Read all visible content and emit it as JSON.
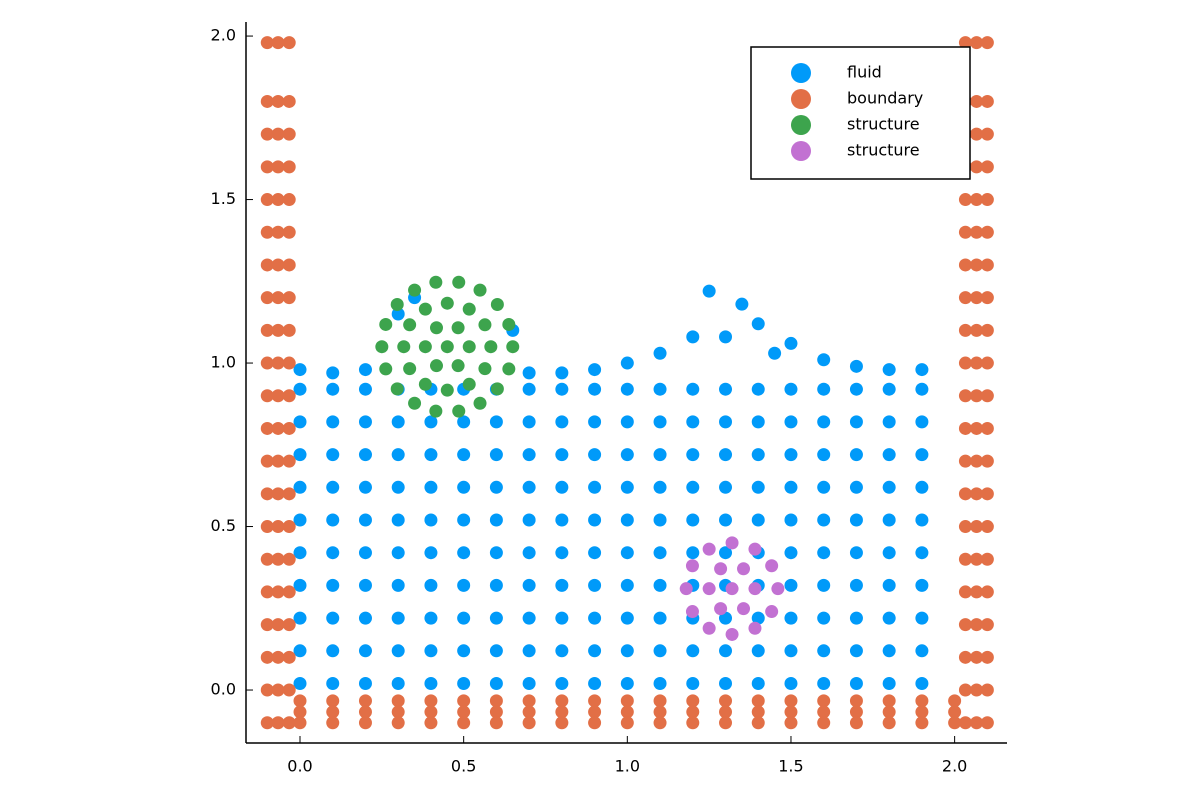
{
  "chart_data": {
    "type": "scatter",
    "xlim": [
      -0.165,
      2.16
    ],
    "ylim": [
      -0.162,
      2.043
    ],
    "xticks": [
      {
        "value": 0,
        "label": "0.0"
      },
      0.5,
      {
        "value": 1,
        "label": "1.0"
      },
      1.5,
      {
        "value": 2,
        "label": "2.0"
      }
    ],
    "yticks": [
      {
        "value": 0,
        "label": "0.0"
      },
      0.5,
      {
        "value": 1,
        "label": "1.0"
      },
      1.5,
      {
        "value": 2,
        "label": "2.0"
      }
    ],
    "grid": false,
    "legend": "top-right",
    "series": [
      {
        "name": "fluid",
        "color": "#009af9",
        "x": [
          0,
          0.1,
          0.2,
          0.3,
          0.4,
          0.5,
          0.6,
          0.7,
          0.8,
          0.9,
          1.0,
          1.1,
          1.2,
          1.3,
          1.4,
          1.5,
          1.6,
          1.7,
          1.8,
          1.9,
          0,
          0.1,
          0.2,
          0.3,
          0.4,
          0.5,
          0.6,
          0.7,
          0.8,
          0.9,
          1.0,
          1.1,
          1.2,
          1.3,
          1.4,
          1.5,
          1.6,
          1.7,
          1.8,
          1.9,
          0,
          0.1,
          0.2,
          0.3,
          0.4,
          0.5,
          0.6,
          0.7,
          0.8,
          0.9,
          1.0,
          1.1,
          1.2,
          1.3,
          1.4,
          1.5,
          1.6,
          1.7,
          1.8,
          1.9,
          0,
          0.1,
          0.2,
          0.3,
          0.4,
          0.5,
          0.6,
          0.7,
          0.8,
          0.9,
          1.0,
          1.1,
          1.2,
          1.3,
          1.4,
          1.5,
          1.6,
          1.7,
          1.8,
          1.9,
          0,
          0.1,
          0.2,
          0.3,
          0.4,
          0.5,
          0.6,
          0.7,
          0.8,
          0.9,
          1.0,
          1.1,
          1.2,
          1.3,
          1.4,
          1.5,
          1.6,
          1.7,
          1.8,
          1.9,
          0,
          0.1,
          0.2,
          0.3,
          0.4,
          0.5,
          0.6,
          0.7,
          0.8,
          0.9,
          1.0,
          1.1,
          1.2,
          1.3,
          1.4,
          1.5,
          1.6,
          1.7,
          1.8,
          1.9,
          0,
          0.1,
          0.2,
          0.3,
          0.4,
          0.5,
          0.6,
          0.7,
          0.8,
          0.9,
          1.0,
          1.1,
          1.2,
          1.3,
          1.4,
          1.5,
          1.6,
          1.7,
          1.8,
          1.9,
          0,
          0.1,
          0.2,
          0.3,
          0.4,
          0.5,
          0.6,
          0.7,
          0.8,
          0.9,
          1.0,
          1.1,
          1.2,
          1.3,
          1.4,
          1.5,
          1.6,
          1.7,
          1.8,
          1.9,
          0,
          0.1,
          0.2,
          0.3,
          0.4,
          0.5,
          0.6,
          0.7,
          0.8,
          0.9,
          1.0,
          1.1,
          1.2,
          1.3,
          1.4,
          1.5,
          1.6,
          1.7,
          1.8,
          1.9,
          0,
          0.1,
          0.2,
          0.3,
          0.4,
          0.5,
          0.6,
          0.7,
          0.8,
          0.9,
          1.0,
          1.1,
          1.2,
          1.3,
          1.4,
          1.5,
          1.6,
          1.7,
          1.8,
          1.9,
          0,
          0.1,
          0.2,
          0.7,
          0.8,
          0.9,
          1.0,
          1.1,
          1.2,
          1.25,
          1.35,
          1.3,
          1.4,
          1.45,
          1.5,
          1.6,
          1.7,
          1.8,
          1.9,
          0.3,
          0.35,
          0.65
        ],
        "y": [
          0.02,
          0.02,
          0.02,
          0.02,
          0.02,
          0.02,
          0.02,
          0.02,
          0.02,
          0.02,
          0.02,
          0.02,
          0.02,
          0.02,
          0.02,
          0.02,
          0.02,
          0.02,
          0.02,
          0.02,
          0.12,
          0.12,
          0.12,
          0.12,
          0.12,
          0.12,
          0.12,
          0.12,
          0.12,
          0.12,
          0.12,
          0.12,
          0.12,
          0.12,
          0.12,
          0.12,
          0.12,
          0.12,
          0.12,
          0.12,
          0.22,
          0.22,
          0.22,
          0.22,
          0.22,
          0.22,
          0.22,
          0.22,
          0.22,
          0.22,
          0.22,
          0.22,
          0.22,
          0.22,
          0.22,
          0.22,
          0.22,
          0.22,
          0.22,
          0.22,
          0.32,
          0.32,
          0.32,
          0.32,
          0.32,
          0.32,
          0.32,
          0.32,
          0.32,
          0.32,
          0.32,
          0.32,
          0.32,
          0.32,
          0.32,
          0.32,
          0.32,
          0.32,
          0.32,
          0.32,
          0.42,
          0.42,
          0.42,
          0.42,
          0.42,
          0.42,
          0.42,
          0.42,
          0.42,
          0.42,
          0.42,
          0.42,
          0.42,
          0.42,
          0.42,
          0.42,
          0.42,
          0.42,
          0.42,
          0.42,
          0.52,
          0.52,
          0.52,
          0.52,
          0.52,
          0.52,
          0.52,
          0.52,
          0.52,
          0.52,
          0.52,
          0.52,
          0.52,
          0.52,
          0.52,
          0.52,
          0.52,
          0.52,
          0.52,
          0.52,
          0.62,
          0.62,
          0.62,
          0.62,
          0.62,
          0.62,
          0.62,
          0.62,
          0.62,
          0.62,
          0.62,
          0.62,
          0.62,
          0.62,
          0.62,
          0.62,
          0.62,
          0.62,
          0.62,
          0.62,
          0.72,
          0.72,
          0.72,
          0.72,
          0.72,
          0.72,
          0.72,
          0.72,
          0.72,
          0.72,
          0.72,
          0.72,
          0.72,
          0.72,
          0.72,
          0.72,
          0.72,
          0.72,
          0.72,
          0.72,
          0.82,
          0.82,
          0.82,
          0.82,
          0.82,
          0.82,
          0.82,
          0.82,
          0.82,
          0.82,
          0.82,
          0.82,
          0.82,
          0.82,
          0.82,
          0.82,
          0.82,
          0.82,
          0.82,
          0.82,
          0.92,
          0.92,
          0.92,
          0.92,
          0.92,
          0.92,
          0.92,
          0.92,
          0.92,
          0.92,
          0.92,
          0.92,
          0.92,
          0.92,
          0.92,
          0.92,
          0.92,
          0.92,
          0.92,
          0.92,
          0.98,
          0.97,
          0.98,
          0.97,
          0.97,
          0.98,
          1.0,
          1.03,
          1.08,
          1.22,
          1.18,
          1.08,
          1.12,
          1.03,
          1.06,
          1.01,
          0.99,
          0.98,
          0.98,
          1.15,
          1.2,
          1.1
        ]
      },
      {
        "name": "boundary",
        "color": "#e26f46",
        "x": [
          -0.1,
          -0.067,
          -0.033,
          -0.1,
          -0.067,
          -0.033,
          -0.1,
          -0.067,
          -0.033,
          -0.1,
          -0.067,
          -0.033,
          -0.1,
          -0.067,
          -0.033,
          -0.1,
          -0.067,
          -0.033,
          -0.1,
          -0.067,
          -0.033,
          -0.1,
          -0.067,
          -0.033,
          -0.1,
          -0.067,
          -0.033,
          -0.1,
          -0.067,
          -0.033,
          -0.1,
          -0.067,
          -0.033,
          -0.1,
          -0.067,
          -0.033,
          -0.1,
          -0.067,
          -0.033,
          -0.1,
          -0.067,
          -0.033,
          -0.1,
          -0.067,
          -0.033,
          -0.1,
          -0.067,
          -0.033,
          -0.1,
          -0.067,
          -0.033,
          -0.1,
          -0.067,
          -0.033,
          -0.1,
          -0.067,
          -0.033,
          -0.1,
          -0.067,
          -0.033,
          -0.1,
          -0.067,
          -0.033,
          2.033,
          2.067,
          2.1,
          2.033,
          2.067,
          2.1,
          2.033,
          2.067,
          2.1,
          2.033,
          2.067,
          2.1,
          2.033,
          2.067,
          2.1,
          2.033,
          2.067,
          2.1,
          2.033,
          2.067,
          2.1,
          2.033,
          2.067,
          2.1,
          2.033,
          2.067,
          2.1,
          2.033,
          2.067,
          2.1,
          2.033,
          2.067,
          2.1,
          2.033,
          2.067,
          2.1,
          2.033,
          2.067,
          2.1,
          2.033,
          2.067,
          2.1,
          2.033,
          2.067,
          2.1,
          2.033,
          2.067,
          2.1,
          2.033,
          2.067,
          2.1,
          2.033,
          2.067,
          2.1,
          2.033,
          2.067,
          2.1,
          2.033,
          2.067,
          2.1,
          2.033,
          2.067,
          2.1,
          0,
          0.1,
          0.2,
          0.3,
          0.4,
          0.5,
          0.6,
          0.7,
          0.8,
          0.9,
          1.0,
          1.1,
          1.2,
          1.3,
          1.4,
          1.5,
          1.6,
          1.7,
          1.8,
          1.9,
          2.0,
          0,
          0.1,
          0.2,
          0.3,
          0.4,
          0.5,
          0.6,
          0.7,
          0.8,
          0.9,
          1.0,
          1.1,
          1.2,
          1.3,
          1.4,
          1.5,
          1.6,
          1.7,
          1.8,
          1.9,
          2.0,
          0,
          0.1,
          0.2,
          0.3,
          0.4,
          0.5,
          0.6,
          0.7,
          0.8,
          0.9,
          1.0,
          1.1,
          1.2,
          1.3,
          1.4,
          1.5,
          1.6,
          1.7,
          1.8,
          1.9,
          2.0
        ],
        "y": [
          -0.1,
          -0.1,
          -0.1,
          0,
          0,
          0,
          0.1,
          0.1,
          0.1,
          0.2,
          0.2,
          0.2,
          0.3,
          0.3,
          0.3,
          0.4,
          0.4,
          0.4,
          0.5,
          0.5,
          0.5,
          0.6,
          0.6,
          0.6,
          0.7,
          0.7,
          0.7,
          0.8,
          0.8,
          0.8,
          0.9,
          0.9,
          0.9,
          1.0,
          1.0,
          1.0,
          1.1,
          1.1,
          1.1,
          1.2,
          1.2,
          1.2,
          1.3,
          1.3,
          1.3,
          1.4,
          1.4,
          1.4,
          1.5,
          1.5,
          1.5,
          1.6,
          1.6,
          1.6,
          1.7,
          1.7,
          1.7,
          1.8,
          1.8,
          1.8,
          1.98,
          1.98,
          1.98,
          -0.1,
          -0.1,
          -0.1,
          0,
          0,
          0,
          0.1,
          0.1,
          0.1,
          0.2,
          0.2,
          0.2,
          0.3,
          0.3,
          0.3,
          0.4,
          0.4,
          0.4,
          0.5,
          0.5,
          0.5,
          0.6,
          0.6,
          0.6,
          0.7,
          0.7,
          0.7,
          0.8,
          0.8,
          0.8,
          0.9,
          0.9,
          0.9,
          1.0,
          1.0,
          1.0,
          1.1,
          1.1,
          1.1,
          1.2,
          1.2,
          1.2,
          1.3,
          1.3,
          1.3,
          1.4,
          1.4,
          1.4,
          1.5,
          1.5,
          1.5,
          1.6,
          1.6,
          1.6,
          1.7,
          1.7,
          1.7,
          1.8,
          1.8,
          1.8,
          1.98,
          1.98,
          1.98,
          -0.033,
          -0.033,
          -0.033,
          -0.033,
          -0.033,
          -0.033,
          -0.033,
          -0.033,
          -0.033,
          -0.033,
          -0.033,
          -0.033,
          -0.033,
          -0.033,
          -0.033,
          -0.033,
          -0.033,
          -0.033,
          -0.033,
          -0.033,
          -0.033,
          -0.067,
          -0.067,
          -0.067,
          -0.067,
          -0.067,
          -0.067,
          -0.067,
          -0.067,
          -0.067,
          -0.067,
          -0.067,
          -0.067,
          -0.067,
          -0.067,
          -0.067,
          -0.067,
          -0.067,
          -0.067,
          -0.067,
          -0.067,
          -0.067,
          -0.1,
          -0.1,
          -0.1,
          -0.1,
          -0.1,
          -0.1,
          -0.1,
          -0.1,
          -0.1,
          -0.1,
          -0.1,
          -0.1,
          -0.1,
          -0.1,
          -0.1,
          -0.1,
          -0.1,
          -0.1,
          -0.1,
          -0.1,
          -0.1
        ]
      },
      {
        "name": "structure",
        "color": "#3da44d",
        "x": [
          0.45,
          0.517,
          0.483,
          0.417,
          0.383,
          0.417,
          0.483,
          0.583,
          0.565,
          0.517,
          0.45,
          0.383,
          0.335,
          0.317,
          0.335,
          0.383,
          0.45,
          0.517,
          0.565,
          0.65,
          0.638,
          0.603,
          0.55,
          0.485,
          0.415,
          0.35,
          0.297,
          0.262,
          0.25,
          0.262,
          0.297,
          0.35,
          0.415,
          0.485,
          0.55,
          0.603,
          0.638
        ],
        "y": [
          1.05,
          1.05,
          1.108,
          1.108,
          1.05,
          0.992,
          0.992,
          1.05,
          1.117,
          1.165,
          1.183,
          1.165,
          1.117,
          1.05,
          0.983,
          0.935,
          0.917,
          0.935,
          0.983,
          1.05,
          1.118,
          1.179,
          1.223,
          1.247,
          1.247,
          1.223,
          1.179,
          1.118,
          1.05,
          0.982,
          0.921,
          0.877,
          0.853,
          0.853,
          0.877,
          0.921,
          0.982
        ]
      },
      {
        "name": "structure",
        "color": "#c271d2",
        "x": [
          1.32,
          1.39,
          1.355,
          1.285,
          1.25,
          1.285,
          1.355,
          1.46,
          1.441,
          1.39,
          1.32,
          1.25,
          1.199,
          1.18,
          1.199,
          1.25,
          1.32,
          1.39,
          1.441
        ],
        "y": [
          0.31,
          0.31,
          0.371,
          0.371,
          0.31,
          0.249,
          0.249,
          0.31,
          0.38,
          0.431,
          0.45,
          0.431,
          0.38,
          0.31,
          0.24,
          0.189,
          0.17,
          0.189,
          0.24
        ]
      }
    ]
  }
}
